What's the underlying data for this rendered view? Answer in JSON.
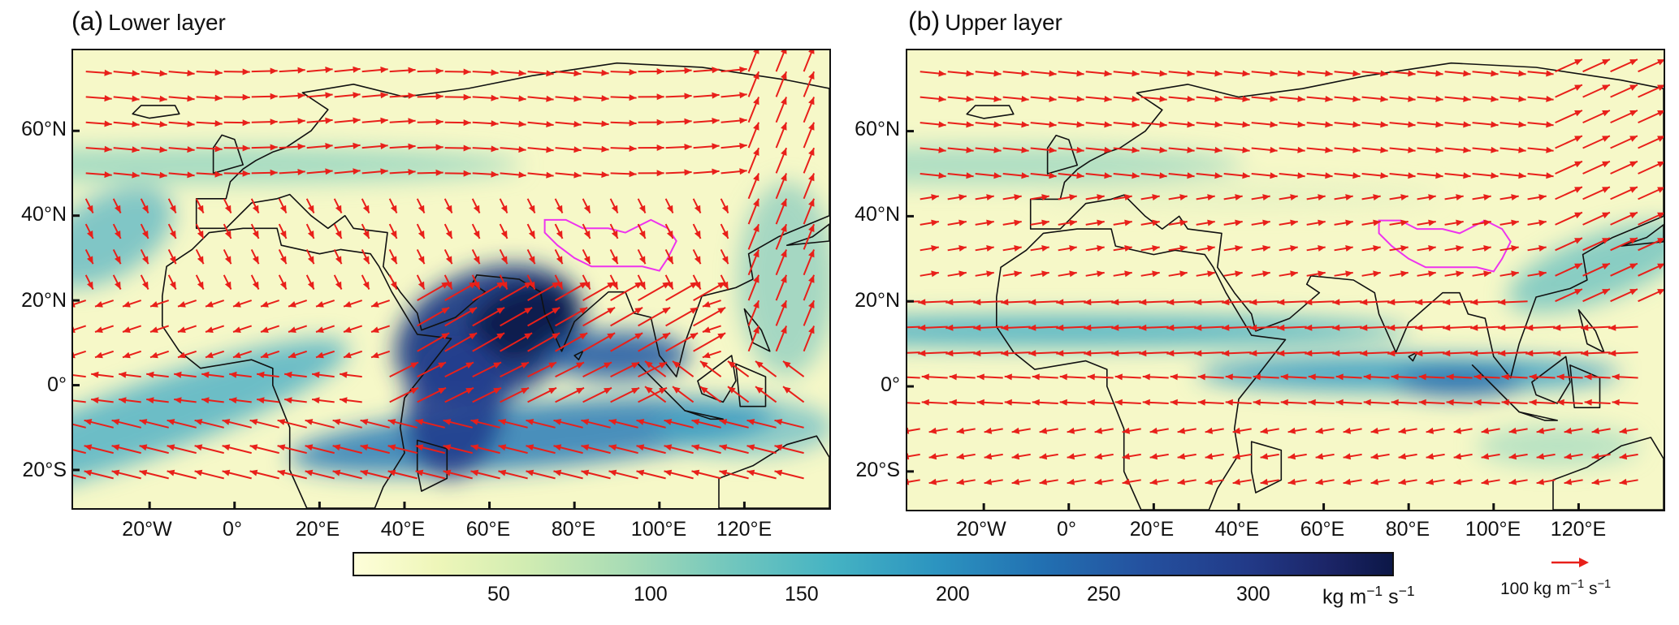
{
  "panels": [
    {
      "label": "(a)",
      "title": "Lower layer",
      "lat_labels": [
        "60°N",
        "40°N",
        "20°N",
        "0°",
        "20°S"
      ],
      "lon_labels": [
        "20°W",
        "0°",
        "20°E",
        "40°E",
        "60°E",
        "80°E",
        "100°E",
        "120°E"
      ]
    },
    {
      "label": "(b)",
      "title": "Upper layer",
      "lat_labels": [
        "60°N",
        "40°N",
        "20°N",
        "0°",
        "20°S"
      ],
      "lon_labels": [
        "20°W",
        "0°",
        "20°E",
        "40°E",
        "60°E",
        "80°E",
        "100°E",
        "120°E"
      ]
    }
  ],
  "colorbar": {
    "tick_labels": [
      "50",
      "100",
      "150",
      "200",
      "250",
      "300"
    ],
    "unit_base": "kg m",
    "unit_exp1": "−1",
    "unit_mid": " s",
    "unit_exp2": "−1"
  },
  "vector_key": {
    "value": "100 kg m",
    "exp1": "−1",
    "mid": " s",
    "exp2": "−1"
  },
  "colors": {
    "vector": "#e8201a",
    "region_outline": "#ee33ee",
    "coastline": "#111111",
    "colormap_low": "#fefed9",
    "colormap_high": "#0c1747"
  }
}
